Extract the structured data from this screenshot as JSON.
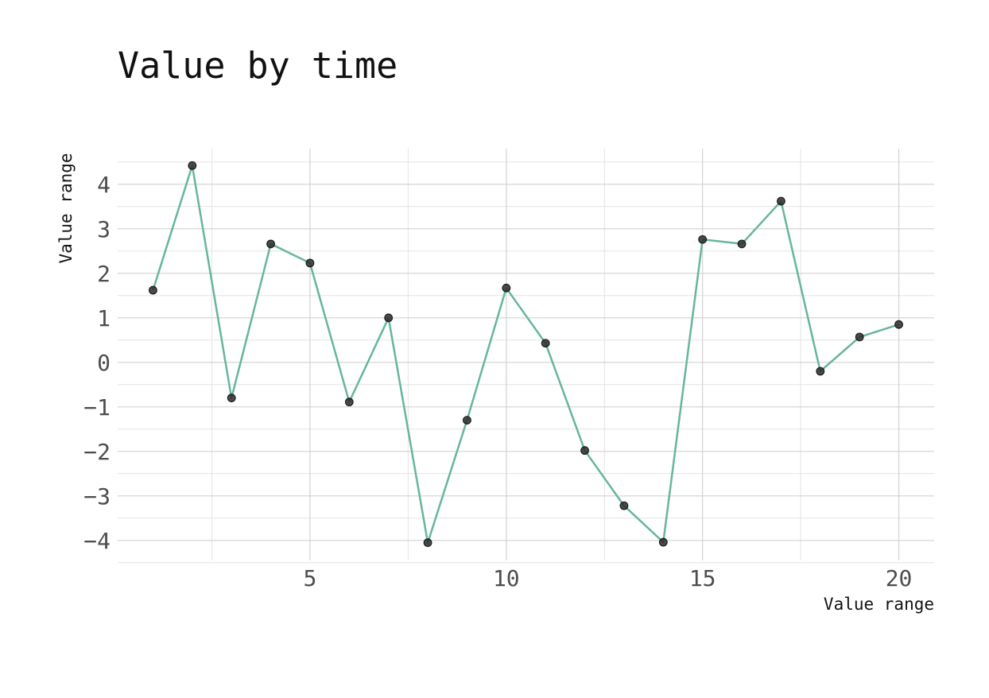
{
  "chart_data": {
    "type": "line",
    "title": "Value by time",
    "xlabel": "Value range",
    "ylabel": "Value range",
    "xlim": [
      0.1,
      20.9
    ],
    "ylim": [
      -4.45,
      4.8
    ],
    "x_ticks": [
      5,
      10,
      15,
      20
    ],
    "y_ticks": [
      -4,
      -3,
      -2,
      -1,
      0,
      1,
      2,
      3,
      4
    ],
    "x_minor_ticks": [
      2.5,
      7.5,
      12.5,
      17.5
    ],
    "y_minor_ticks": [
      -4.5,
      -3.5,
      -2.5,
      -1.5,
      -0.5,
      0.5,
      1.5,
      2.5,
      3.5,
      4.5
    ],
    "grid": true,
    "line_color": "#66b5a0",
    "marker_color": "#2b2b2b",
    "series": [
      {
        "x": [
          1,
          2,
          3,
          4,
          5,
          6,
          7,
          8,
          9,
          10,
          11,
          12,
          13,
          14,
          15,
          16,
          17,
          18,
          19,
          20
        ],
        "values": [
          1.62,
          4.42,
          -0.8,
          2.66,
          2.23,
          -0.89,
          1.0,
          -4.05,
          -1.3,
          1.67,
          0.43,
          -1.98,
          -3.22,
          -4.04,
          2.76,
          2.66,
          3.62,
          -0.2,
          0.57,
          0.85
        ]
      }
    ]
  }
}
